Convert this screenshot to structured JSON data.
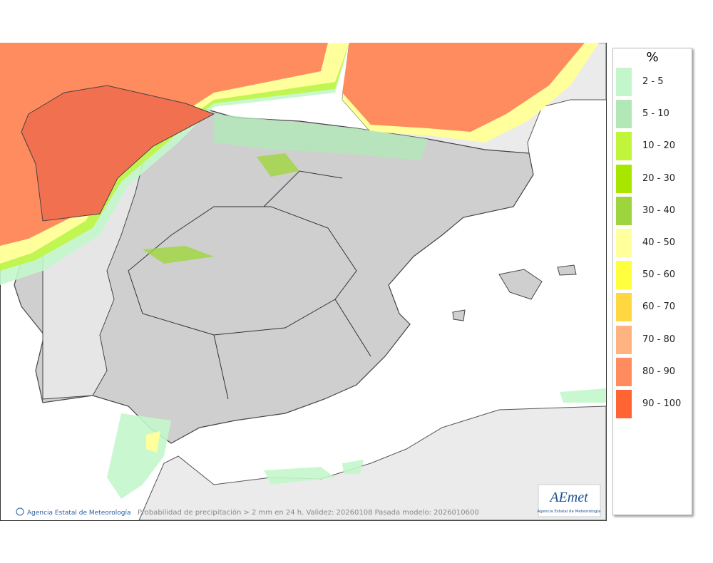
{
  "legend": {
    "title": "%",
    "items": [
      {
        "label": "2 - 5",
        "color": "#c3f7cb"
      },
      {
        "label": "5 - 10",
        "color": "#b2e8b8"
      },
      {
        "label": "10 - 20",
        "color": "#c0f53c"
      },
      {
        "label": "20 - 30",
        "color": "#a8e600"
      },
      {
        "label": "30 - 40",
        "color": "#9dd63c"
      },
      {
        "label": "40 - 50",
        "color": "#ffff9c"
      },
      {
        "label": "50 - 60",
        "color": "#ffff40"
      },
      {
        "label": "60 - 70",
        "color": "#ffd740"
      },
      {
        "label": "70 - 80",
        "color": "#ffb380"
      },
      {
        "label": "80 - 90",
        "color": "#ff8c5f"
      },
      {
        "label": "90 - 100",
        "color": "#ff6432"
      }
    ]
  },
  "footer": {
    "credit": "Agencia Estatal de Meteorología",
    "caption": "Probabilidad de precipitación > 2 mm en 24 h. Validez: 20260108 Pasada modelo: 2026010600"
  },
  "logo": {
    "name": "AEmet",
    "subtitle": "Agencia Estatal de Meteorología"
  }
}
